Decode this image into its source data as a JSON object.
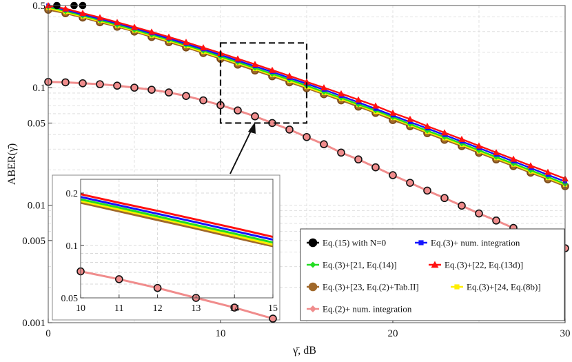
{
  "chart_data": {
    "type": "line",
    "xlabel": "γ̄, dB",
    "ylabel": "ABER(γ̄)",
    "xlim": [
      0,
      30
    ],
    "ylim": [
      0.001,
      0.5
    ],
    "yscale": "log",
    "x_ticks": [
      "0",
      "10",
      "20",
      "30"
    ],
    "y_ticks": [
      "0.001",
      "0.005",
      "0.01",
      "0.05",
      "0.1",
      "0.5"
    ],
    "grid": true,
    "x": [
      0,
      1,
      2,
      3,
      4,
      5,
      6,
      7,
      8,
      9,
      10,
      11,
      12,
      13,
      14,
      15,
      16,
      17,
      18,
      19,
      20,
      21,
      22,
      23,
      24,
      25,
      26,
      27,
      28,
      29,
      30
    ],
    "series": [
      {
        "name": "Eq.(15) with N=0",
        "marker": "circle",
        "color": "#000000",
        "values": [
          0.112,
          0.111,
          0.109,
          0.107,
          0.104,
          0.1,
          0.096,
          0.091,
          0.085,
          0.078,
          0.071,
          0.064,
          0.057,
          0.05,
          0.044,
          0.038,
          0.033,
          0.028,
          0.0245,
          0.021,
          0.018,
          0.0155,
          0.0133,
          0.0115,
          0.0099,
          0.0085,
          0.0074,
          0.0064,
          0.0056,
          0.0049,
          0.0043
        ]
      },
      {
        "name": "Eq.(3)+ num. integration",
        "marker": "square",
        "color": "#1414ff",
        "values": [
          0.5,
          0.46,
          0.42,
          0.385,
          0.352,
          0.32,
          0.29,
          0.262,
          0.236,
          0.212,
          0.19,
          0.17,
          0.152,
          0.136,
          0.121,
          0.108,
          0.096,
          0.085,
          0.075,
          0.066,
          0.058,
          0.051,
          0.045,
          0.0396,
          0.0348,
          0.0306,
          0.0269,
          0.0236,
          0.0207,
          0.0181,
          0.0159
        ]
      },
      {
        "name": "Eq.(3)+[21, Eq.(14)]",
        "marker": "diamond",
        "color": "#22dd22",
        "values": [
          0.487,
          0.448,
          0.41,
          0.375,
          0.342,
          0.311,
          0.282,
          0.255,
          0.23,
          0.206,
          0.184,
          0.165,
          0.147,
          0.131,
          0.117,
          0.104,
          0.092,
          0.082,
          0.072,
          0.064,
          0.056,
          0.049,
          0.043,
          0.038,
          0.0334,
          0.0293,
          0.0257,
          0.0226,
          0.0198,
          0.0174,
          0.0152
        ]
      },
      {
        "name": "Eq.(3)+[22, Eq.(13d)]",
        "marker": "triangle",
        "color": "#ff1111",
        "values": [
          0.51,
          0.47,
          0.43,
          0.395,
          0.36,
          0.328,
          0.298,
          0.27,
          0.244,
          0.219,
          0.197,
          0.176,
          0.158,
          0.141,
          0.126,
          0.112,
          0.1,
          0.089,
          0.079,
          0.07,
          0.061,
          0.054,
          0.047,
          0.0414,
          0.0364,
          0.032,
          0.0281,
          0.0247,
          0.0217,
          0.0191,
          0.0168
        ]
      },
      {
        "name": "Eq.(3)+[23, Eq.(2)+Tab.II]",
        "marker": "circle",
        "color": "#a0682a",
        "values": [
          0.46,
          0.43,
          0.395,
          0.36,
          0.33,
          0.3,
          0.27,
          0.244,
          0.22,
          0.197,
          0.176,
          0.157,
          0.14,
          0.125,
          0.111,
          0.099,
          0.088,
          0.078,
          0.069,
          0.061,
          0.053,
          0.047,
          0.041,
          0.036,
          0.0318,
          0.0279,
          0.0245,
          0.0215,
          0.0189,
          0.0166,
          0.0145
        ]
      },
      {
        "name": "Eq.(3)+[24, Eq.(8b)]",
        "marker": "square",
        "color": "#ffee00",
        "values": [
          0.475,
          0.438,
          0.402,
          0.368,
          0.336,
          0.305,
          0.276,
          0.25,
          0.225,
          0.201,
          0.18,
          0.161,
          0.144,
          0.128,
          0.114,
          0.101,
          0.09,
          0.08,
          0.071,
          0.062,
          0.055,
          0.048,
          0.042,
          0.037,
          0.0326,
          0.0286,
          0.0251,
          0.0221,
          0.0193,
          0.017,
          0.0149
        ]
      },
      {
        "name": "Eq.(2)+ num. integration",
        "marker": "diamond",
        "color": "#f08c8c",
        "values": [
          0.112,
          0.111,
          0.109,
          0.107,
          0.104,
          0.1,
          0.096,
          0.091,
          0.085,
          0.078,
          0.071,
          0.064,
          0.057,
          0.05,
          0.044,
          0.038,
          0.033,
          0.028,
          0.0245,
          0.021,
          0.018,
          0.0155,
          0.0133,
          0.0115,
          0.0099,
          0.0085,
          0.0074,
          0.0064,
          0.0056,
          0.0049,
          0.0043
        ]
      }
    ],
    "zoom_region": {
      "xlim": [
        10,
        15
      ],
      "ylim": [
        0.05,
        0.24
      ]
    },
    "inset": {
      "xlim": [
        10,
        15
      ],
      "ylim": [
        0.05,
        0.24
      ],
      "x_ticks": [
        "10",
        "11",
        "12",
        "13",
        "14",
        "15"
      ],
      "y_ticks": [
        "0.05",
        "0.1",
        "0.2"
      ]
    },
    "legend_placement": "bottom-right"
  }
}
